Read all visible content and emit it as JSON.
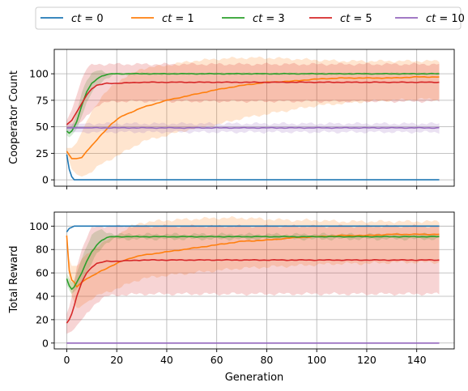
{
  "chart_data": [
    {
      "type": "line",
      "panel": "top",
      "xlabel": "",
      "ylabel": "Cooperator Count",
      "xlim": [
        -5,
        155
      ],
      "ylim": [
        -6,
        123
      ],
      "xticks": [
        0,
        20,
        40,
        60,
        80,
        100,
        120,
        140
      ],
      "yticks": [
        0,
        25,
        50,
        75,
        100
      ],
      "ytick_labels": [
        "0",
        "25",
        "50",
        "75",
        "100"
      ],
      "grid": true,
      "legend_position": "top-center (above plots, horizontal)",
      "series": [
        {
          "name": "ct = 0",
          "legend_math": "ct",
          "legend_value": "0",
          "color": "#1f77b4",
          "x": [
            0,
            1,
            2,
            3,
            4,
            6,
            10,
            20,
            40,
            60,
            80,
            100,
            120,
            149
          ],
          "y": [
            24,
            10,
            3,
            0,
            0,
            0,
            0,
            0,
            0,
            0,
            0,
            0,
            0,
            0
          ],
          "lower": null,
          "upper": null
        },
        {
          "name": "ct = 1",
          "legend_math": "ct",
          "legend_value": "1",
          "color": "#ff7f0e",
          "x": [
            0,
            2,
            4,
            6,
            8,
            10,
            14,
            18,
            22,
            26,
            30,
            40,
            50,
            60,
            70,
            80,
            90,
            100,
            110,
            120,
            130,
            140,
            149
          ],
          "y": [
            27,
            20,
            20,
            21,
            27,
            32,
            43,
            53,
            60,
            64,
            68,
            75,
            80,
            85,
            89,
            92,
            93,
            95,
            96,
            96,
            96,
            97,
            97
          ],
          "lower": [
            25,
            10,
            5,
            3,
            5,
            8,
            15,
            20,
            25,
            30,
            36,
            42,
            48,
            52,
            58,
            62,
            66,
            70,
            72,
            74,
            75,
            76,
            76
          ],
          "upper": [
            30,
            30,
            35,
            45,
            55,
            65,
            78,
            88,
            95,
            100,
            105,
            108,
            112,
            114,
            115,
            115,
            114,
            113,
            112,
            112,
            112,
            112,
            112
          ]
        },
        {
          "name": "ct = 3",
          "legend_math": "ct",
          "legend_value": "3",
          "color": "#2ca02c",
          "x": [
            0,
            1,
            2,
            3,
            4,
            6,
            8,
            10,
            12,
            14,
            16,
            18,
            20,
            30,
            60,
            100,
            149
          ],
          "y": [
            46,
            44,
            46,
            50,
            55,
            70,
            83,
            91,
            95,
            98,
            99,
            100,
            100,
            100,
            100,
            100,
            100
          ],
          "lower": [
            42,
            40,
            42,
            45,
            48,
            60,
            72,
            82,
            88,
            93,
            96,
            98,
            99,
            100,
            100,
            100,
            100
          ],
          "upper": [
            50,
            49,
            51,
            56,
            64,
            82,
            95,
            100,
            103,
            102,
            101,
            100,
            100,
            100,
            100,
            100,
            100
          ]
        },
        {
          "name": "ct = 5",
          "legend_math": "ct",
          "legend_value": "5",
          "color": "#d62728",
          "x": [
            0,
            2,
            4,
            6,
            8,
            10,
            12,
            14,
            16,
            20,
            30,
            60,
            100,
            149
          ],
          "y": [
            52,
            56,
            64,
            72,
            80,
            86,
            89,
            90,
            91,
            91,
            92,
            92,
            92,
            92
          ],
          "lower": [
            48,
            50,
            52,
            55,
            60,
            65,
            70,
            72,
            73,
            74,
            74,
            74,
            74,
            74
          ],
          "upper": [
            56,
            66,
            80,
            95,
            105,
            108,
            109,
            109,
            109,
            109,
            109,
            109,
            109,
            109
          ]
        },
        {
          "name": "ct = 10",
          "legend_math": "ct",
          "legend_value": "10",
          "color": "#9467bd",
          "x": [
            0,
            149
          ],
          "y": [
            49,
            49
          ],
          "lower": [
            45,
            45
          ],
          "upper": [
            53,
            53
          ]
        }
      ]
    },
    {
      "type": "line",
      "panel": "bottom",
      "xlabel": "Generation",
      "ylabel": "Total Reward",
      "xlim": [
        -5,
        155
      ],
      "ylim": [
        -5,
        112
      ],
      "xticks": [
        0,
        20,
        40,
        60,
        80,
        100,
        120,
        140
      ],
      "xtick_labels": [
        "0",
        "20",
        "40",
        "60",
        "80",
        "100",
        "120",
        "140"
      ],
      "yticks": [
        0,
        20,
        40,
        60,
        80,
        100
      ],
      "ytick_labels": [
        "0",
        "20",
        "40",
        "60",
        "80",
        "100"
      ],
      "grid": true,
      "series": [
        {
          "name": "ct = 0",
          "color": "#1f77b4",
          "x": [
            0,
            1,
            2,
            3,
            4,
            6,
            10,
            20,
            40,
            60,
            80,
            100,
            120,
            149
          ],
          "y": [
            95,
            98,
            99,
            100,
            100,
            100,
            100,
            100,
            100,
            100,
            100,
            100,
            100,
            100
          ],
          "lower": null,
          "upper": null
        },
        {
          "name": "ct = 1",
          "color": "#ff7f0e",
          "x": [
            0,
            1,
            2,
            3,
            4,
            5,
            6,
            8,
            10,
            14,
            18,
            22,
            26,
            30,
            40,
            50,
            60,
            70,
            80,
            90,
            100,
            110,
            120,
            130,
            140,
            149
          ],
          "y": [
            92,
            62,
            54,
            52,
            48,
            50,
            52,
            55,
            57,
            62,
            66,
            70,
            73,
            75,
            78,
            81,
            84,
            87,
            88,
            90,
            91,
            92,
            92,
            93,
            93,
            93
          ],
          "lower": [
            88,
            50,
            40,
            35,
            30,
            30,
            32,
            35,
            38,
            42,
            45,
            48,
            52,
            55,
            58,
            60,
            62,
            64,
            65,
            66,
            67,
            68,
            68,
            69,
            69,
            69
          ],
          "upper": [
            95,
            72,
            66,
            66,
            66,
            68,
            72,
            76,
            80,
            85,
            90,
            95,
            100,
            103,
            105,
            106,
            107,
            107,
            106,
            105,
            105,
            104,
            104,
            104,
            104,
            104
          ]
        },
        {
          "name": "ct = 3",
          "color": "#2ca02c",
          "x": [
            0,
            1,
            2,
            3,
            4,
            6,
            8,
            10,
            12,
            14,
            16,
            18,
            20,
            30,
            60,
            100,
            149
          ],
          "y": [
            55,
            49,
            46,
            48,
            52,
            60,
            70,
            78,
            84,
            88,
            90,
            91,
            91,
            91,
            91,
            91,
            91
          ],
          "lower": [
            50,
            45,
            42,
            44,
            46,
            52,
            60,
            68,
            76,
            82,
            86,
            88,
            89,
            89,
            89,
            89,
            89
          ],
          "upper": [
            60,
            55,
            52,
            54,
            60,
            72,
            84,
            92,
            96,
            96,
            95,
            94,
            93,
            93,
            93,
            93,
            93
          ]
        },
        {
          "name": "ct = 5",
          "color": "#d62728",
          "x": [
            0,
            1,
            2,
            3,
            4,
            6,
            8,
            10,
            12,
            14,
            16,
            20,
            30,
            60,
            100,
            149
          ],
          "y": [
            17,
            20,
            25,
            32,
            40,
            52,
            60,
            65,
            68,
            69,
            70,
            70,
            71,
            71,
            71,
            71
          ],
          "lower": [
            8,
            9,
            10,
            12,
            15,
            20,
            25,
            30,
            35,
            38,
            40,
            41,
            42,
            42,
            42,
            42
          ],
          "upper": [
            25,
            31,
            40,
            52,
            65,
            80,
            90,
            98,
            100,
            100,
            100,
            100,
            100,
            100,
            100,
            100
          ]
        },
        {
          "name": "ct = 10",
          "color": "#9467bd",
          "x": [
            0,
            149
          ],
          "y": [
            0,
            0
          ],
          "lower": null,
          "upper": null
        }
      ]
    }
  ]
}
